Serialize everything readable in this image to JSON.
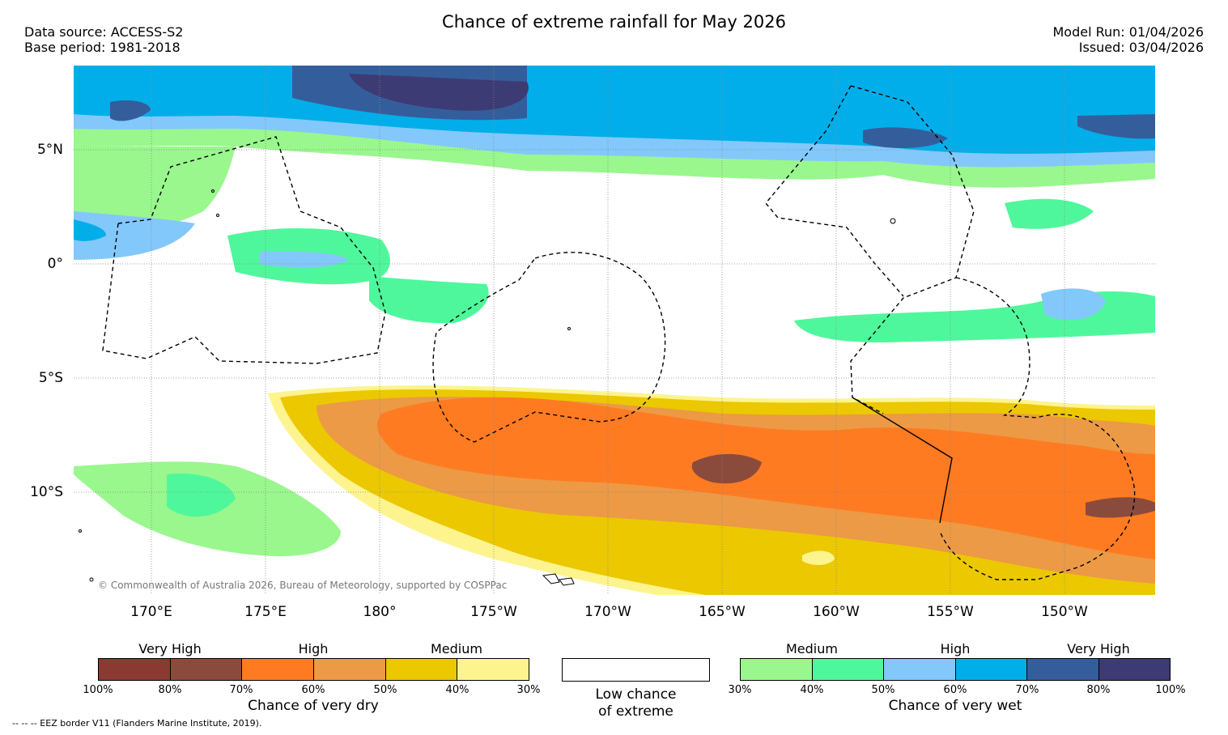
{
  "title": "Chance of extreme rainfall for May 2026",
  "data_source": "Data source: ACCESS-S2",
  "base_period": "Base period: 1981-2018",
  "model_run": "Model Run: 01/04/2026",
  "issued": "Issued: 03/04/2026",
  "lat_labels": [
    "5°N",
    "0°",
    "5°S",
    "10°S"
  ],
  "lon_labels": [
    "170°E",
    "175°E",
    "180°",
    "175°W",
    "170°W",
    "165°W",
    "160°W",
    "155°W",
    "150°W"
  ],
  "copyright": "© Commonwealth of Australia 2026, Bureau of Meteorology, supported by COSPPac",
  "dry_scale": {
    "headings": [
      "Very High",
      "High",
      "Medium"
    ],
    "ticks": [
      "100%",
      "80%",
      "70%",
      "60%",
      "50%",
      "40%",
      "30%"
    ],
    "caption": "Chance of very dry",
    "colors": [
      "#8a3a30",
      "#8b4b3c",
      "#ff7b22",
      "#ec9a45",
      "#ecc800",
      "#fdf48f"
    ]
  },
  "low_scale": {
    "line1": "Low chance",
    "line2": "of extreme"
  },
  "wet_scale": {
    "headings": [
      "Medium",
      "High",
      "Very High"
    ],
    "ticks": [
      "30%",
      "40%",
      "50%",
      "60%",
      "70%",
      "80%",
      "100%"
    ],
    "caption": "Chance of very wet",
    "colors": [
      "#99f78d",
      "#4ff79c",
      "#83c8fb",
      "#02aeea",
      "#345e9b",
      "#3d3b73"
    ]
  },
  "footer": "-- -- -- EEZ border V11 (Flanders Marine Institute, 2019)."
}
